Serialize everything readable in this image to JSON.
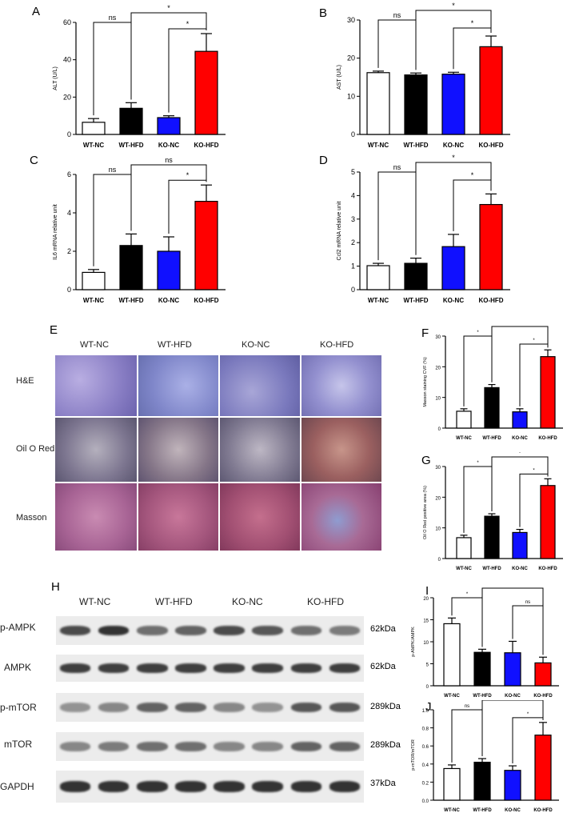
{
  "colors": {
    "wt_nc": "#ffffff",
    "wt_hfd": "#000000",
    "ko_nc": "#1010ff",
    "ko_hfd": "#ff0000"
  },
  "groups": [
    "WT-NC",
    "WT-HFD",
    "KO-NC",
    "KO-HFD"
  ],
  "panels": {
    "A": "A",
    "B": "B",
    "C": "C",
    "D": "D",
    "E": "E",
    "F": "F",
    "G": "G",
    "H": "H",
    "I": "I",
    "J": "J"
  },
  "histology": {
    "columns": [
      "WT-NC",
      "WT-HFD",
      "KO-NC",
      "KO-HFD"
    ],
    "rows": [
      "H&E",
      "Oil O Red",
      "Masson"
    ]
  },
  "western": {
    "columns": [
      "WT-NC",
      "WT-HFD",
      "KO-NC",
      "KO-HFD"
    ],
    "proteins": [
      {
        "name": "p-AMPK",
        "kda": "62kDa"
      },
      {
        "name": "AMPK",
        "kda": "62kDa"
      },
      {
        "name": "p-mTOR",
        "kda": "289kDa"
      },
      {
        "name": "mTOR",
        "kda": "289kDa"
      },
      {
        "name": "GAPDH",
        "kda": "37kDa"
      }
    ],
    "band_intensity": [
      [
        0.75,
        0.85,
        0.6,
        0.65,
        0.75,
        0.7,
        0.6,
        0.55
      ],
      [
        0.8,
        0.8,
        0.8,
        0.8,
        0.8,
        0.8,
        0.8,
        0.8
      ],
      [
        0.45,
        0.5,
        0.65,
        0.65,
        0.5,
        0.45,
        0.7,
        0.7
      ],
      [
        0.5,
        0.55,
        0.6,
        0.6,
        0.5,
        0.5,
        0.65,
        0.65
      ],
      [
        0.85,
        0.85,
        0.85,
        0.85,
        0.85,
        0.85,
        0.85,
        0.85
      ]
    ]
  },
  "chart_data": [
    {
      "id": "A",
      "type": "bar",
      "categories": [
        "WT-NC",
        "WT-HFD",
        "KO-NC",
        "KO-HFD"
      ],
      "values": [
        6.5,
        14,
        9,
        44.5
      ],
      "errors": [
        2,
        3,
        1,
        9.5
      ],
      "ylabel": "ALT (U/L)",
      "ylim": [
        0,
        60
      ],
      "yticks": [
        0,
        20,
        40,
        60
      ],
      "comparisons": [
        {
          "from": 0,
          "to": 1,
          "label": "ns"
        },
        {
          "from": 1,
          "to": 3,
          "label": "*"
        },
        {
          "from": 2,
          "to": 3,
          "label": "*"
        }
      ]
    },
    {
      "id": "B",
      "type": "bar",
      "categories": [
        "WT-NC",
        "WT-HFD",
        "KO-NC",
        "KO-HFD"
      ],
      "values": [
        16.2,
        15.6,
        15.8,
        23
      ],
      "errors": [
        0.4,
        0.5,
        0.5,
        2.8
      ],
      "ylabel": "AST (U/L)",
      "ylim": [
        0,
        30
      ],
      "yticks": [
        0,
        10,
        20,
        30
      ],
      "comparisons": [
        {
          "from": 0,
          "to": 1,
          "label": "ns"
        },
        {
          "from": 1,
          "to": 3,
          "label": "*"
        },
        {
          "from": 2,
          "to": 3,
          "label": "*"
        }
      ]
    },
    {
      "id": "C",
      "type": "bar",
      "categories": [
        "WT-NC",
        "WT-HFD",
        "KO-NC",
        "KO-HFD"
      ],
      "values": [
        0.9,
        2.3,
        2.0,
        4.6
      ],
      "errors": [
        0.15,
        0.6,
        0.75,
        0.85
      ],
      "ylabel": "IL6 mRNA relative unit",
      "ylim": [
        0,
        6
      ],
      "yticks": [
        0,
        2,
        4,
        6
      ],
      "comparisons": [
        {
          "from": 0,
          "to": 1,
          "label": "ns"
        },
        {
          "from": 1,
          "to": 3,
          "label": "ns"
        },
        {
          "from": 2,
          "to": 3,
          "label": "*"
        }
      ]
    },
    {
      "id": "D",
      "type": "bar",
      "categories": [
        "WT-NC",
        "WT-HFD",
        "KO-NC",
        "KO-HFD"
      ],
      "values": [
        1.02,
        1.12,
        1.83,
        3.62
      ],
      "errors": [
        0.1,
        0.22,
        0.52,
        0.45
      ],
      "ylabel": "Ccl2 mRNA relative unit",
      "ylim": [
        0,
        5
      ],
      "yticks": [
        0,
        1,
        2,
        3,
        4,
        5
      ],
      "comparisons": [
        {
          "from": 0,
          "to": 1,
          "label": "ns"
        },
        {
          "from": 1,
          "to": 3,
          "label": "*"
        },
        {
          "from": 2,
          "to": 3,
          "label": "*"
        }
      ]
    },
    {
      "id": "F",
      "type": "bar",
      "categories": [
        "WT-NC",
        "WT-HFD",
        "KO-NC",
        "KO-HFD"
      ],
      "values": [
        5.5,
        13.2,
        5.3,
        23.3
      ],
      "errors": [
        0.8,
        1,
        1,
        2.2
      ],
      "ylabel": "Masson staining CVF (%)",
      "ylim": [
        0,
        30
      ],
      "yticks": [
        0,
        10,
        20,
        30
      ],
      "comparisons": [
        {
          "from": 0,
          "to": 1,
          "label": "*"
        },
        {
          "from": 1,
          "to": 3,
          "label": "*"
        },
        {
          "from": 2,
          "to": 3,
          "label": "*"
        }
      ]
    },
    {
      "id": "G",
      "type": "bar",
      "categories": [
        "WT-NC",
        "WT-HFD",
        "KO-NC",
        "KO-HFD"
      ],
      "values": [
        6.8,
        13.8,
        8.5,
        23.8
      ],
      "errors": [
        0.8,
        0.8,
        1,
        2.2
      ],
      "ylabel": "Oil O Red positive area (%)",
      "ylim": [
        0,
        30
      ],
      "yticks": [
        0,
        10,
        20,
        30
      ],
      "comparisons": [
        {
          "from": 0,
          "to": 1,
          "label": "*"
        },
        {
          "from": 1,
          "to": 3,
          "label": "*"
        },
        {
          "from": 2,
          "to": 3,
          "label": "*"
        }
      ]
    },
    {
      "id": "I",
      "type": "bar",
      "categories": [
        "WT-NC",
        "WT-HFD",
        "KO-NC",
        "KO-HFD"
      ],
      "values": [
        14.1,
        7.6,
        7.5,
        5.2
      ],
      "errors": [
        1.3,
        0.7,
        2.6,
        1.3
      ],
      "ylabel": "p-AMPK/AMPK",
      "ylim": [
        0,
        20
      ],
      "yticks": [
        0,
        5,
        10,
        15,
        20
      ],
      "comparisons": [
        {
          "from": 0,
          "to": 1,
          "label": "*"
        },
        {
          "from": 1,
          "to": 3,
          "label": "ns"
        },
        {
          "from": 2,
          "to": 3,
          "label": "ns"
        }
      ]
    },
    {
      "id": "J",
      "type": "bar",
      "categories": [
        "WT-NC",
        "WT-HFD",
        "KO-NC",
        "KO-HFD"
      ],
      "values": [
        0.35,
        0.42,
        0.33,
        0.72
      ],
      "errors": [
        0.04,
        0.04,
        0.05,
        0.14
      ],
      "ylabel": "p-mTOR/mTOR",
      "ylim": [
        0,
        1
      ],
      "yticks": [
        0,
        0.2,
        0.4,
        0.6,
        0.8,
        1.0
      ],
      "comparisons": [
        {
          "from": 0,
          "to": 1,
          "label": "ns"
        },
        {
          "from": 1,
          "to": 3,
          "label": "ns"
        },
        {
          "from": 2,
          "to": 3,
          "label": "*"
        }
      ]
    }
  ]
}
